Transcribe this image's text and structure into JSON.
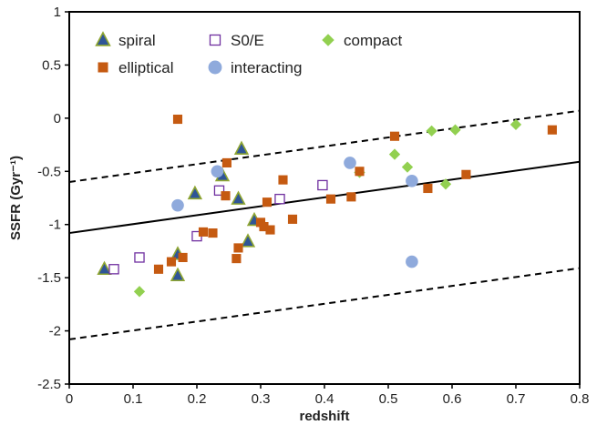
{
  "chart_data": {
    "type": "scatter",
    "xlabel": "redshift",
    "ylabel": "SSFR (Gyr⁻¹)",
    "xlim": [
      0,
      0.8
    ],
    "ylim": [
      -2.5,
      1
    ],
    "xticks": [
      0,
      0.1,
      0.2,
      0.3,
      0.4,
      0.5,
      0.6,
      0.7,
      0.8
    ],
    "yticks": [
      1,
      0.5,
      0,
      -0.5,
      -1,
      -1.5,
      -2,
      -2.5
    ],
    "xtick_labels": [
      "0",
      "0.1",
      "0.2",
      "0.3",
      "0.4",
      "0.5",
      "0.6",
      "0.7",
      "0.8"
    ],
    "ytick_labels": [
      "1",
      "0.5",
      "0",
      "-0.5",
      "-1",
      "-1.5",
      "-2",
      "-2.5"
    ],
    "grid": false,
    "legend_position": "top",
    "series": [
      {
        "name": "spiral",
        "marker": "triangle",
        "color": "#2f5597",
        "edge": "#8fa631",
        "x": [
          0.055,
          0.17,
          0.17,
          0.197,
          0.24,
          0.265,
          0.27,
          0.28,
          0.29
        ],
        "y": [
          -1.42,
          -1.28,
          -1.48,
          -0.71,
          -0.54,
          -0.76,
          -0.29,
          -1.16,
          -0.96
        ]
      },
      {
        "name": "S0/E",
        "marker": "open-square",
        "color": "#7030a0",
        "x": [
          0.07,
          0.11,
          0.2,
          0.235,
          0.33,
          0.397
        ],
        "y": [
          -1.42,
          -1.31,
          -1.11,
          -0.68,
          -0.76,
          -0.63
        ]
      },
      {
        "name": "compact",
        "marker": "diamond",
        "color": "#92d050",
        "x": [
          0.11,
          0.455,
          0.51,
          0.53,
          0.568,
          0.59,
          0.605,
          0.7
        ],
        "y": [
          -1.63,
          -0.51,
          -0.34,
          -0.46,
          -0.12,
          -0.62,
          -0.11,
          -0.06
        ]
      },
      {
        "name": "elliptical",
        "marker": "square",
        "color": "#c55a11",
        "x": [
          0.14,
          0.16,
          0.17,
          0.178,
          0.21,
          0.225,
          0.245,
          0.247,
          0.262,
          0.265,
          0.3,
          0.305,
          0.31,
          0.315,
          0.335,
          0.35,
          0.41,
          0.442,
          0.455,
          0.51,
          0.562,
          0.622,
          0.757
        ],
        "y": [
          -1.42,
          -1.35,
          -0.01,
          -1.31,
          -1.07,
          -1.08,
          -0.73,
          -0.42,
          -1.32,
          -1.22,
          -0.98,
          -1.02,
          -0.79,
          -1.05,
          -0.58,
          -0.95,
          -0.76,
          -0.74,
          -0.5,
          -0.17,
          -0.66,
          -0.53,
          -0.11
        ]
      },
      {
        "name": "interacting",
        "marker": "circle",
        "color": "#8faadc",
        "x": [
          0.17,
          0.232,
          0.44,
          0.537,
          0.537
        ],
        "y": [
          -0.82,
          -0.5,
          -0.42,
          -0.59,
          -1.35
        ]
      }
    ],
    "fit_lines": [
      {
        "style": "solid",
        "x": [
          0,
          0.8
        ],
        "y": [
          -1.08,
          -0.41
        ]
      },
      {
        "style": "dashed",
        "x": [
          0,
          0.8
        ],
        "y": [
          -0.6,
          0.07
        ]
      },
      {
        "style": "dashed",
        "x": [
          0,
          0.8
        ],
        "y": [
          -2.08,
          -1.41
        ]
      }
    ]
  }
}
